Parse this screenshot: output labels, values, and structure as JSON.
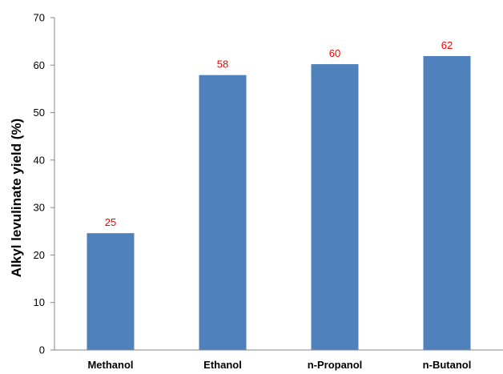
{
  "chart_data": {
    "type": "bar",
    "title": "",
    "xlabel": "",
    "ylabel": "Alkyl levulinate yield (%)",
    "categories": [
      "Methanol",
      "Ethanol",
      "n-Propanol",
      "n-Butanol"
    ],
    "values": [
      24.6,
      57.9,
      60.2,
      61.9
    ],
    "data_labels": [
      "25",
      "58",
      "60",
      "62"
    ],
    "ylim": [
      0,
      70
    ],
    "yticks": [
      "0",
      "10",
      "20",
      "30",
      "40",
      "50",
      "60",
      "70"
    ],
    "grid": false,
    "legend": "none",
    "colors": {
      "bar": "#4f81bd",
      "data_label": "#ff0000",
      "axis": "#868686"
    }
  }
}
